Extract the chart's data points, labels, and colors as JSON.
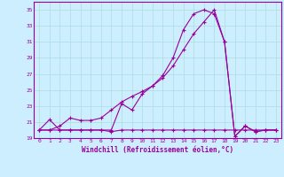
{
  "xlabel": "Windchill (Refroidissement éolien,°C)",
  "background_color": "#cceeff",
  "grid_color": "#aadddd",
  "line_color": "#990099",
  "xlim": [
    -0.5,
    23.5
  ],
  "ylim": [
    19,
    36
  ],
  "yticks": [
    19,
    21,
    23,
    25,
    27,
    29,
    31,
    33,
    35
  ],
  "xticks": [
    0,
    1,
    2,
    3,
    4,
    5,
    6,
    7,
    8,
    9,
    10,
    11,
    12,
    13,
    14,
    15,
    16,
    17,
    18,
    19,
    20,
    21,
    22,
    23
  ],
  "series1_x": [
    0,
    1,
    2,
    3,
    4,
    5,
    6,
    7,
    8,
    9,
    10,
    11,
    12,
    13,
    14,
    15,
    16,
    17,
    18,
    19,
    20,
    21,
    22,
    23
  ],
  "series1_y": [
    20.0,
    21.3,
    20.0,
    20.0,
    20.0,
    20.0,
    20.0,
    19.8,
    20.0,
    20.0,
    20.0,
    20.0,
    20.0,
    20.0,
    20.0,
    20.0,
    20.0,
    20.0,
    20.0,
    20.0,
    20.0,
    20.0,
    20.0,
    20.0
  ],
  "series2_x": [
    0,
    1,
    2,
    3,
    4,
    5,
    6,
    7,
    8,
    9,
    10,
    11,
    12,
    13,
    14,
    15,
    16,
    17,
    18,
    19,
    20,
    21,
    22,
    23
  ],
  "series2_y": [
    20.0,
    20.0,
    20.5,
    21.5,
    21.2,
    21.2,
    21.5,
    22.5,
    23.5,
    24.2,
    24.8,
    25.5,
    26.5,
    28.0,
    30.0,
    32.0,
    33.5,
    35.0,
    31.0,
    19.2,
    20.5,
    19.8,
    20.0,
    20.0
  ],
  "series3_x": [
    0,
    1,
    2,
    3,
    4,
    5,
    6,
    7,
    8,
    9,
    10,
    11,
    12,
    13,
    14,
    15,
    16,
    17,
    18,
    19,
    20,
    21,
    22,
    23
  ],
  "series3_y": [
    20.0,
    20.0,
    20.0,
    20.0,
    20.0,
    20.0,
    20.0,
    20.0,
    23.3,
    22.5,
    24.5,
    25.5,
    26.8,
    29.0,
    32.5,
    34.5,
    35.0,
    34.5,
    31.0,
    19.2,
    20.5,
    19.8,
    20.0,
    20.0
  ]
}
